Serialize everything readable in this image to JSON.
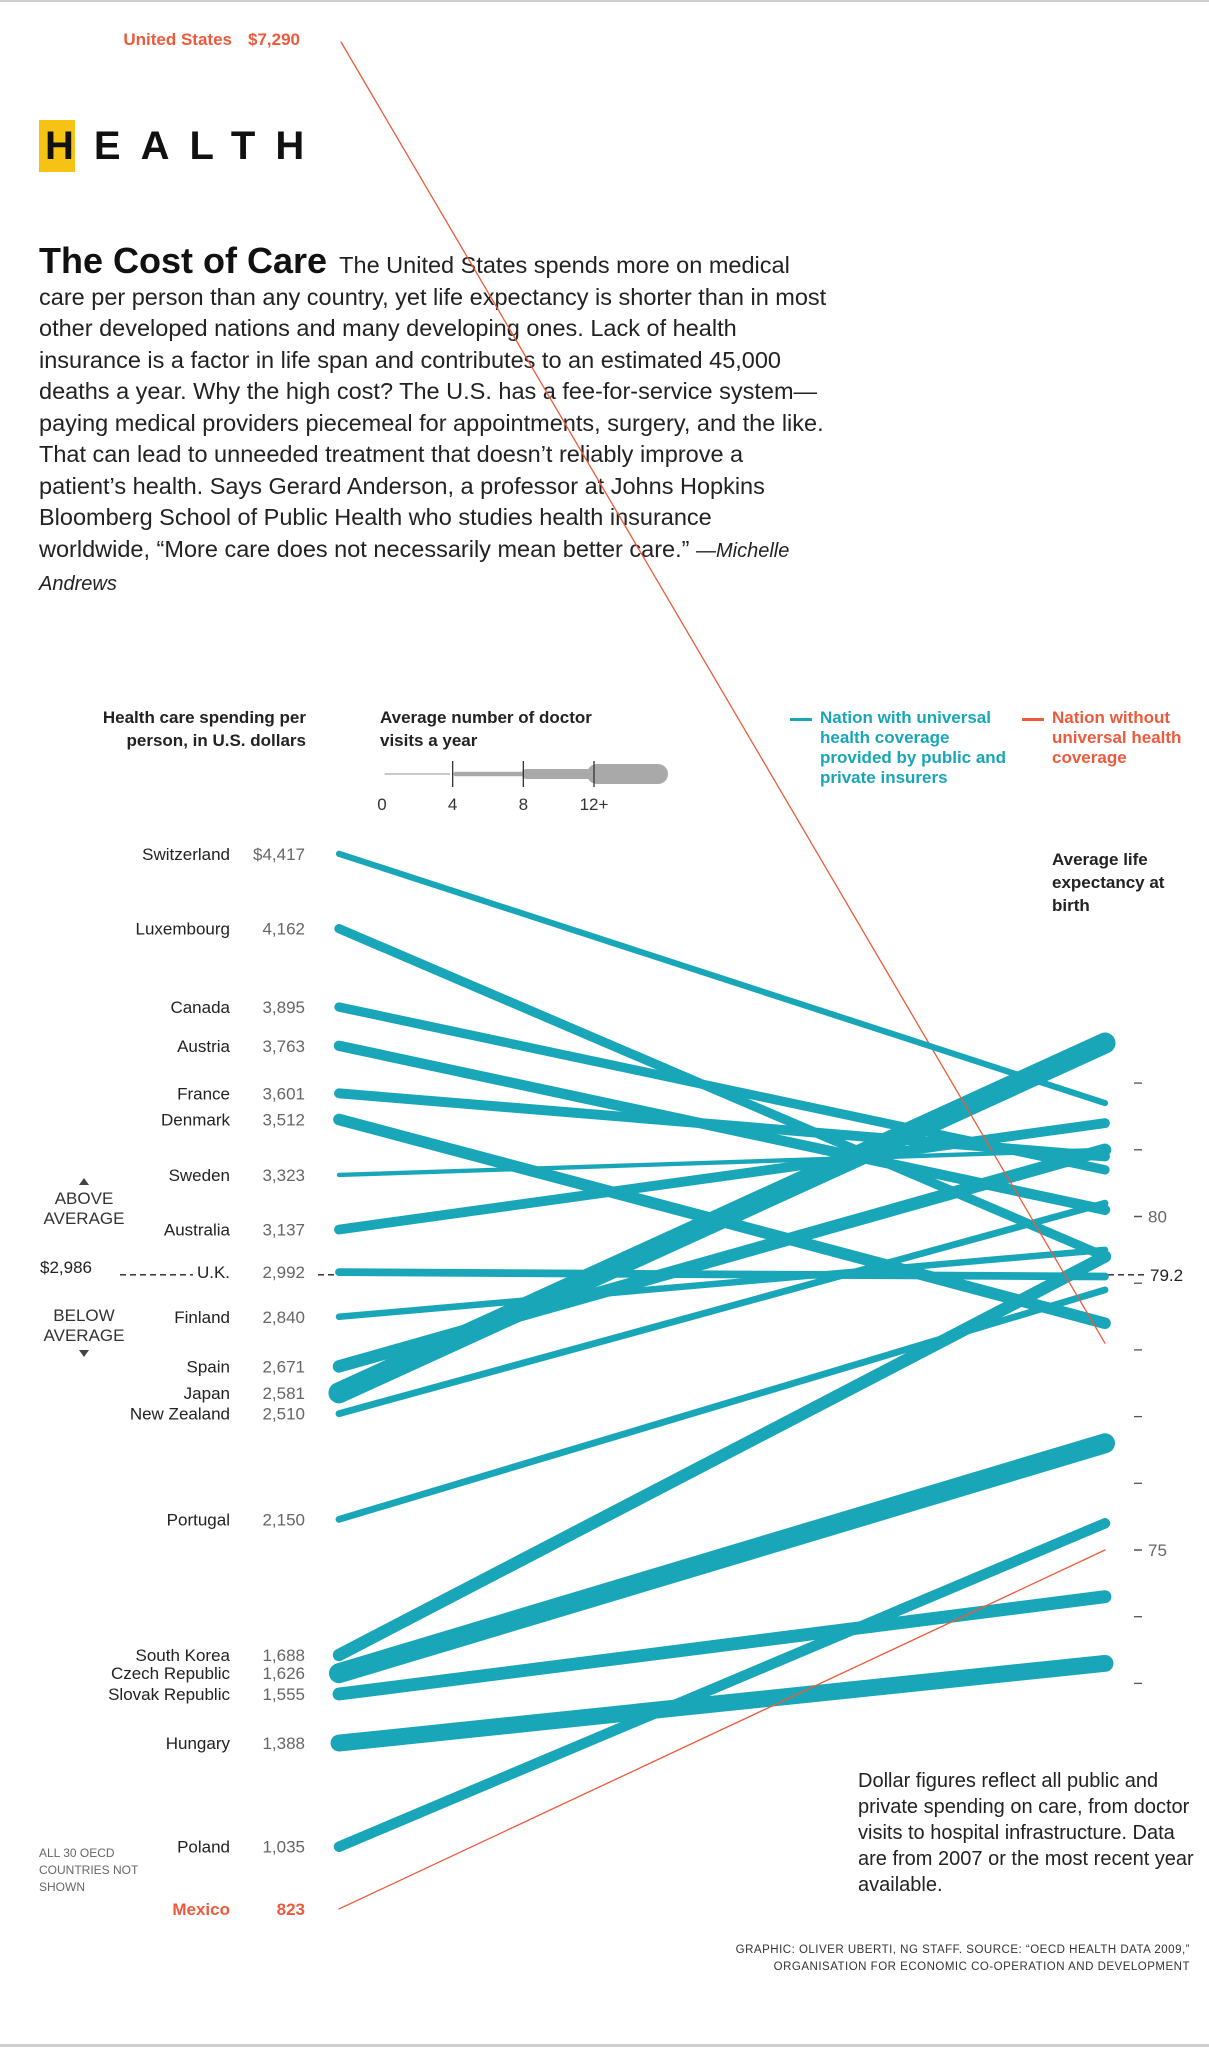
{
  "section_tag": {
    "word": "HEALTH",
    "highlight_color": "#f6c315"
  },
  "headline": {
    "title": "The Cost of Care",
    "body": "The United States spends more on medical care per person than any country, yet life expectancy is shorter than in most other developed nations and many developing ones. Lack of health insurance is a factor in life span and contributes to an estimated 45,000 deaths a year. Why the high cost? The U.S. has a fee-for-service system—paying medical providers piecemeal for appointments, surgery, and the like. That can lead to unneeded treatment that doesn’t reliably improve a patient’s health. Says Gerard Anderson, a professor at Johns Hopkins Bloomberg School of Public Health who studies health insurance worldwide, “More care does not necessarily mean better care.”",
    "byline": "—Michelle Andrews"
  },
  "colors": {
    "universal": "#18a6b8",
    "non_universal": "#ee5a3c",
    "thickness_key": "#a9a9a9",
    "axis_text": "#666666"
  },
  "headers": {
    "spending": "Health care spending per person, in U.S. dollars",
    "visits": "Average number of doctor visits a year",
    "life_expectancy": "Average life expectancy at birth"
  },
  "legend": {
    "universal": "Nation with universal health coverage provided by public and private insurers",
    "non_universal": "Nation without universal health coverage"
  },
  "average": {
    "above": "ABOVE AVERAGE",
    "below": "BELOW AVERAGE",
    "spending_label": "$2,986"
  },
  "notes": {
    "oecd": "ALL 30 OECD COUNTRIES NOT SHOWN",
    "data": "Dollar figures reflect all public and private spending on care, from doctor visits to hospital infrastructure. Data are from 2007 or the most recent year available.",
    "credit_line1": "GRAPHIC: OLIVER UBERTI, NG STAFF. SOURCE: “OECD HEALTH DATA 2009,”",
    "credit_line2": "ORGANISATION FOR ECONOMIC CO-OPERATION AND DEVELOPMENT"
  },
  "chart_data": {
    "type": "line",
    "title": "",
    "description_axes": {
      "left_axis": "Health care spending per person, in U.S. dollars",
      "right_axis": "Average life expectancy at birth",
      "right_ylim": [
        72,
        82
      ],
      "right_ticks": [
        73,
        74,
        75,
        76,
        77,
        78,
        79,
        80,
        81,
        82
      ],
      "right_tick_labels": [
        {
          "value": 80,
          "label": "80"
        },
        {
          "value": 75,
          "label": "75"
        }
      ],
      "average_spending": 2986,
      "average_spending_label": "$2,986",
      "average_life_expectancy": 79.2,
      "average_life_expectancy_label": "79.2"
    },
    "visits_key": {
      "title": "Average number of doctor visits a year",
      "ticks": [
        0,
        4,
        8,
        12
      ],
      "tick_labels": [
        "0",
        "4",
        "8",
        "12+"
      ]
    },
    "countries": [
      {
        "name": "United States",
        "spending": 7290,
        "spending_label": "$7,290",
        "life_expectancy": 78.1,
        "doctor_visits": 4,
        "universal": false
      },
      {
        "name": "Switzerland",
        "spending": 4417,
        "spending_label": "$4,417",
        "life_expectancy": 81.7,
        "doctor_visits": 4,
        "universal": true
      },
      {
        "name": "Luxembourg",
        "spending": 4162,
        "spending_label": "4,162",
        "life_expectancy": 79.4,
        "doctor_visits": 6,
        "universal": true
      },
      {
        "name": "Canada",
        "spending": 3895,
        "spending_label": "3,895",
        "life_expectancy": 80.7,
        "doctor_visits": 6,
        "universal": true
      },
      {
        "name": "Austria",
        "spending": 3763,
        "spending_label": "3,763",
        "life_expectancy": 80.1,
        "doctor_visits": 6.7,
        "universal": true
      },
      {
        "name": "France",
        "spending": 3601,
        "spending_label": "3,601",
        "life_expectancy": 80.9,
        "doctor_visits": 6.4,
        "universal": true
      },
      {
        "name": "Denmark",
        "spending": 3512,
        "spending_label": "3,512",
        "life_expectancy": 78.4,
        "doctor_visits": 7.5,
        "universal": true
      },
      {
        "name": "Sweden",
        "spending": 3323,
        "spending_label": "3,323",
        "life_expectancy": 81.0,
        "doctor_visits": 2.8,
        "universal": true
      },
      {
        "name": "Australia",
        "spending": 3137,
        "spending_label": "3,137",
        "life_expectancy": 81.4,
        "doctor_visits": 6.3,
        "universal": true
      },
      {
        "name": "U.K.",
        "spending": 2992,
        "spending_label": "2,992",
        "life_expectancy": 79.1,
        "doctor_visits": 5,
        "universal": true
      },
      {
        "name": "Finland",
        "spending": 2840,
        "spending_label": "2,840",
        "life_expectancy": 79.5,
        "doctor_visits": 4.2,
        "universal": true
      },
      {
        "name": "Spain",
        "spending": 2671,
        "spending_label": "2,671",
        "life_expectancy": 81.0,
        "doctor_visits": 8.1,
        "universal": true
      },
      {
        "name": "Japan",
        "spending": 2581,
        "spending_label": "2,581",
        "life_expectancy": 82.6,
        "doctor_visits": 13.6,
        "universal": true
      },
      {
        "name": "New Zealand",
        "spending": 2510,
        "spending_label": "2,510",
        "life_expectancy": 80.2,
        "doctor_visits": 4.4,
        "universal": true
      },
      {
        "name": "Portugal",
        "spending": 2150,
        "spending_label": "2,150",
        "life_expectancy": 78.9,
        "doctor_visits": 4.4,
        "universal": true
      },
      {
        "name": "South Korea",
        "spending": 1688,
        "spending_label": "1,688",
        "life_expectancy": 79.4,
        "doctor_visits": 8,
        "universal": true
      },
      {
        "name": "Czech Republic",
        "spending": 1626,
        "spending_label": "1,626",
        "life_expectancy": 76.6,
        "doctor_visits": 12.9,
        "universal": true
      },
      {
        "name": "Slovak Republic",
        "spending": 1555,
        "spending_label": "1,555",
        "life_expectancy": 74.3,
        "doctor_visits": 8.3,
        "universal": true
      },
      {
        "name": "Hungary",
        "spending": 1388,
        "spending_label": "1,388",
        "life_expectancy": 73.3,
        "doctor_visits": 10.9,
        "universal": true
      },
      {
        "name": "Poland",
        "spending": 1035,
        "spending_label": "1,035",
        "life_expectancy": 75.4,
        "doctor_visits": 6.8,
        "universal": true
      },
      {
        "name": "Mexico",
        "spending": 823,
        "spending_label": "823",
        "life_expectancy": 75.0,
        "doctor_visits": 2.5,
        "universal": false
      }
    ]
  }
}
